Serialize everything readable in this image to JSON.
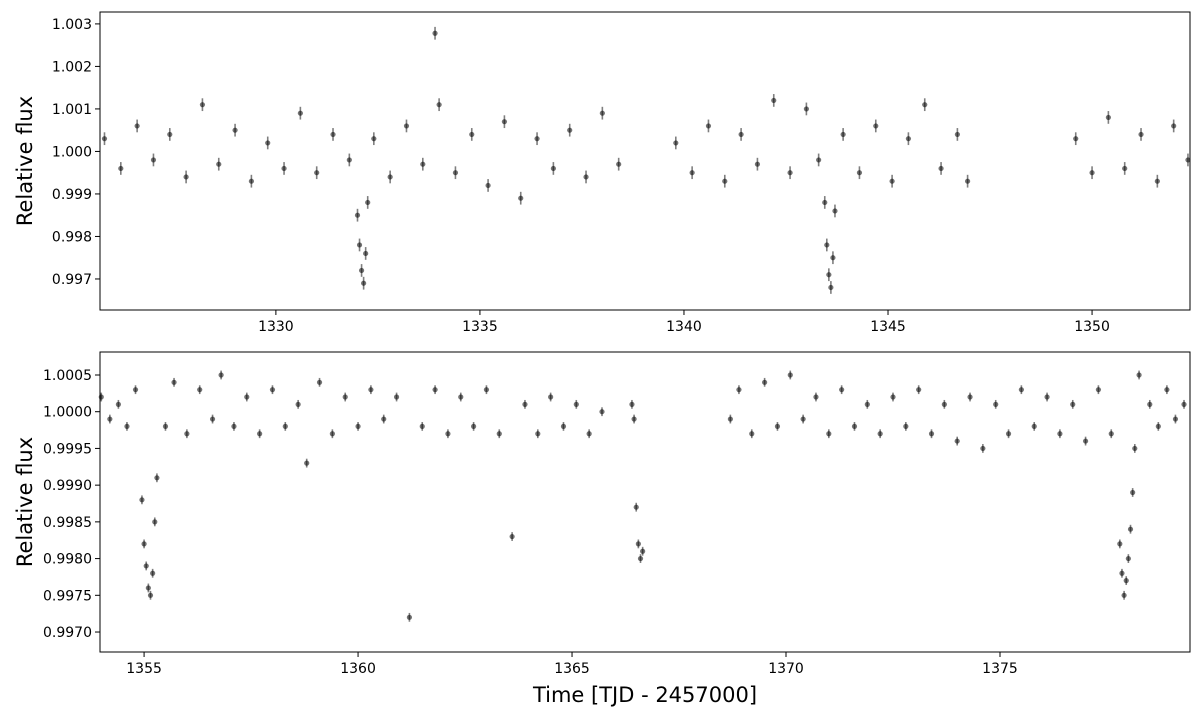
{
  "chart_data": [
    {
      "type": "scatter",
      "ylabel": "Relative flux",
      "xlim": [
        1325.69,
        1352.4
      ],
      "ylim": [
        0.99627,
        1.00328
      ],
      "xticks": [
        1330,
        1335,
        1340,
        1345,
        1350
      ],
      "yticks": [
        0.997,
        0.998,
        0.999,
        {
          "value": 1,
          "label": "1.000"
        },
        1.001,
        1.002,
        1.003
      ],
      "series": [
        {
          "color": "#000000",
          "yerr": 0.00015,
          "x": [
            1325.8,
            1326.2,
            1326.6,
            1327.0,
            1327.4,
            1327.8,
            1328.2,
            1328.6,
            1329.0,
            1329.4,
            1329.8,
            1330.2,
            1330.6,
            1331.0,
            1331.4,
            1331.8,
            1332.0,
            1332.05,
            1332.1,
            1332.15,
            1332.2,
            1332.25,
            1332.4,
            1332.8,
            1333.2,
            1333.6,
            1333.9,
            1334.0,
            1334.4,
            1334.8,
            1335.2,
            1335.6,
            1336.0,
            1336.4,
            1336.8,
            1337.2,
            1337.6,
            1338.0,
            1338.4,
            1339.8,
            1340.2,
            1340.6,
            1341.0,
            1341.4,
            1341.8,
            1342.2,
            1342.6,
            1343.0,
            1343.3,
            1343.45,
            1343.5,
            1343.55,
            1343.6,
            1343.65,
            1343.7,
            1343.9,
            1344.3,
            1344.7,
            1345.1,
            1345.5,
            1345.9,
            1346.3,
            1346.7,
            1346.95,
            1349.6,
            1350.0,
            1350.4,
            1350.8,
            1351.2,
            1351.6,
            1352.0,
            1352.35
          ],
          "y": [
            1.0003,
            0.9996,
            1.0006,
            0.9998,
            1.0004,
            0.9994,
            1.0011,
            0.9997,
            1.0005,
            0.9993,
            1.0002,
            0.9996,
            1.0009,
            0.9995,
            1.0004,
            0.9998,
            0.9985,
            0.9978,
            0.9972,
            0.9969,
            0.9976,
            0.9988,
            1.0003,
            0.9994,
            1.0006,
            0.9997,
            1.00278,
            1.0011,
            0.9995,
            1.0004,
            0.9992,
            1.0007,
            0.9989,
            1.0003,
            0.9996,
            1.0005,
            0.9994,
            1.0009,
            0.9997,
            1.0002,
            0.9995,
            1.0006,
            0.9993,
            1.0004,
            0.9997,
            1.0012,
            0.9995,
            1.001,
            0.9998,
            0.9988,
            0.9978,
            0.9971,
            0.9968,
            0.9975,
            0.9986,
            1.0004,
            0.9995,
            1.0006,
            0.9993,
            1.0003,
            1.0011,
            0.9996,
            1.0004,
            0.9993,
            1.0003,
            0.9995,
            1.0008,
            0.9996,
            1.0004,
            0.9993,
            1.0006,
            0.9998
          ]
        }
      ]
    },
    {
      "type": "scatter",
      "ylabel": "Relative flux",
      "xlabel": "Time [TJD - 2457000]",
      "xlim": [
        1353.97,
        1379.44
      ],
      "ylim": [
        0.996728,
        1.000813
      ],
      "xticks": [
        1355,
        1360,
        1365,
        1370,
        1375
      ],
      "yticks": [
        {
          "value": 0.997,
          "label": "0.9970"
        },
        0.9975,
        {
          "value": 0.998,
          "label": "0.9980"
        },
        0.9985,
        {
          "value": 0.999,
          "label": "0.9990"
        },
        0.9995,
        {
          "value": 1,
          "label": "1.0000"
        },
        1.0005
      ],
      "series": [
        {
          "color": "#000000",
          "yerr": 6e-05,
          "x": [
            1354.0,
            1354.2,
            1354.4,
            1354.6,
            1354.8,
            1354.95,
            1355.0,
            1355.05,
            1355.1,
            1355.15,
            1355.2,
            1355.25,
            1355.3,
            1355.5,
            1355.7,
            1356.0,
            1356.3,
            1356.6,
            1356.8,
            1357.1,
            1357.4,
            1357.7,
            1358.0,
            1358.3,
            1358.6,
            1358.8,
            1359.1,
            1359.4,
            1359.7,
            1360.0,
            1360.3,
            1360.6,
            1360.9,
            1361.2,
            1361.5,
            1361.8,
            1362.1,
            1362.4,
            1362.7,
            1363.0,
            1363.3,
            1363.6,
            1363.9,
            1364.2,
            1364.5,
            1364.8,
            1365.1,
            1365.4,
            1365.7,
            1366.4,
            1366.45,
            1366.5,
            1366.55,
            1366.6,
            1366.65,
            1368.7,
            1368.9,
            1369.2,
            1369.5,
            1369.8,
            1370.1,
            1370.4,
            1370.7,
            1371.0,
            1371.3,
            1371.6,
            1371.9,
            1372.2,
            1372.5,
            1372.8,
            1373.1,
            1373.4,
            1373.7,
            1374.0,
            1374.3,
            1374.6,
            1374.9,
            1375.2,
            1375.5,
            1375.8,
            1376.1,
            1376.4,
            1376.7,
            1377.0,
            1377.3,
            1377.6,
            1377.8,
            1377.85,
            1377.9,
            1377.95,
            1378.0,
            1378.05,
            1378.1,
            1378.15,
            1378.25,
            1378.5,
            1378.7,
            1378.9,
            1379.1,
            1379.3
          ],
          "y": [
            1.0002,
            0.9999,
            1.0001,
            0.9998,
            1.0003,
            0.9988,
            0.9982,
            0.9979,
            0.9976,
            0.9975,
            0.9978,
            0.9985,
            0.9991,
            0.9998,
            1.0004,
            0.9997,
            1.0003,
            0.9999,
            1.0005,
            0.9998,
            1.0002,
            0.9997,
            1.0003,
            0.9998,
            1.0001,
            0.9993,
            1.0004,
            0.9997,
            1.0002,
            0.9998,
            1.0003,
            0.9999,
            1.0002,
            0.9972,
            0.9998,
            1.0003,
            0.9997,
            1.0002,
            0.9998,
            1.0003,
            0.9997,
            0.9983,
            1.0001,
            0.9997,
            1.0002,
            0.9998,
            1.0001,
            0.9997,
            1.0,
            1.0001,
            0.9999,
            0.9987,
            0.9982,
            0.998,
            0.9981,
            0.9999,
            1.0003,
            0.9997,
            1.0004,
            0.9998,
            1.0005,
            0.9999,
            1.0002,
            0.9997,
            1.0003,
            0.9998,
            1.0001,
            0.9997,
            1.0002,
            0.9998,
            1.0003,
            0.9997,
            1.0001,
            0.9996,
            1.0002,
            0.9995,
            1.0001,
            0.9997,
            1.0003,
            0.9998,
            1.0002,
            0.9997,
            1.0001,
            0.9996,
            1.0003,
            0.9997,
            0.9982,
            0.9978,
            0.9975,
            0.9977,
            0.998,
            0.9984,
            0.9989,
            0.9995,
            1.0005,
            1.0001,
            0.9998,
            1.0003,
            0.9999,
            1.0001
          ]
        }
      ]
    }
  ]
}
